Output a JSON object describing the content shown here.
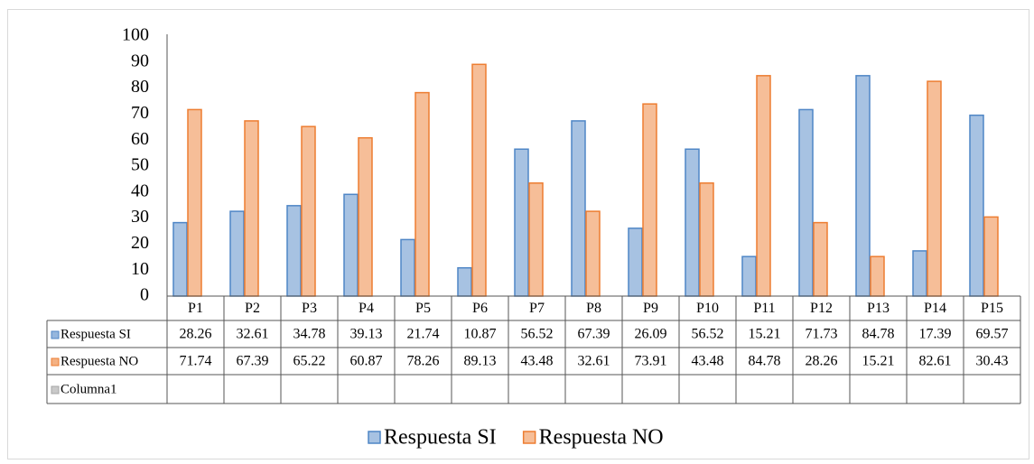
{
  "chart_data": {
    "type": "bar",
    "categories": [
      "P1",
      "P2",
      "P3",
      "P4",
      "P5",
      "P6",
      "P7",
      "P8",
      "P9",
      "P10",
      "P11",
      "P12",
      "P13",
      "P14",
      "P15"
    ],
    "series": [
      {
        "name": "Respuesta SI",
        "color": "#4f86c6",
        "values": [
          28.26,
          32.61,
          34.78,
          39.13,
          21.74,
          10.87,
          56.52,
          67.39,
          26.09,
          56.52,
          15.21,
          71.73,
          84.78,
          17.39,
          69.57
        ]
      },
      {
        "name": "Respuesta NO",
        "color": "#ed7d31",
        "values": [
          71.74,
          67.39,
          65.22,
          60.87,
          78.26,
          89.13,
          43.48,
          32.61,
          73.91,
          43.48,
          84.78,
          28.26,
          15.21,
          82.61,
          30.43
        ]
      },
      {
        "name": "Columna1",
        "color": "#a5a5a5",
        "values": [
          null,
          null,
          null,
          null,
          null,
          null,
          null,
          null,
          null,
          null,
          null,
          null,
          null,
          null,
          null
        ]
      }
    ],
    "ylim": [
      0,
      100
    ],
    "yticks": [
      0,
      10,
      20,
      30,
      40,
      50,
      60,
      70,
      80,
      90,
      100
    ],
    "grid": false,
    "legend": "bottom",
    "data_table": true
  }
}
